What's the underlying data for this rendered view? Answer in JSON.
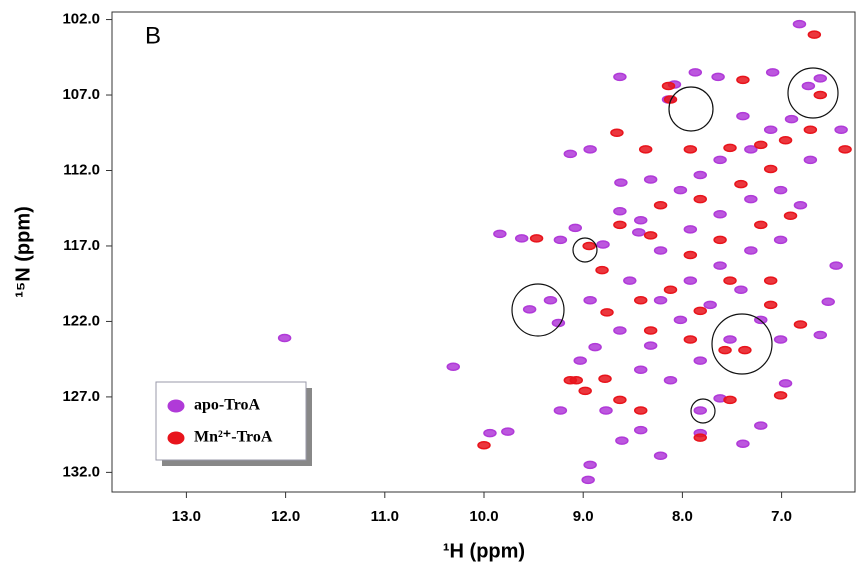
{
  "chart_data": {
    "type": "scatter",
    "panel_label": "B",
    "x_label": "¹H (ppm)",
    "y_label": "¹⁵N (ppm)",
    "xlim": [
      13.75,
      6.25
    ],
    "ylim": [
      101.5,
      133.3
    ],
    "xticks": [
      {
        "value": 13,
        "label": "13.0"
      },
      {
        "value": 12,
        "label": "12.0"
      },
      {
        "value": 11,
        "label": "11.0"
      },
      {
        "value": 10,
        "label": "10.0"
      },
      {
        "value": 9,
        "label": "9.0"
      },
      {
        "value": 8,
        "label": "8.0"
      },
      {
        "value": 7,
        "label": "7.0"
      }
    ],
    "yticks": [
      {
        "value": 102,
        "label": "102.0"
      },
      {
        "value": 107,
        "label": "107.0"
      },
      {
        "value": 112,
        "label": "112.0"
      },
      {
        "value": 117,
        "label": "117.0"
      },
      {
        "value": 122,
        "label": "122.0"
      },
      {
        "value": 127,
        "label": "127.0"
      },
      {
        "value": 132,
        "label": "132.0"
      }
    ],
    "legend": "lower left",
    "series": [
      {
        "name": "apo-TroA",
        "color": "#b03ad8",
        "x": [
          12.01,
          10.31,
          9.84,
          9.62,
          9.94,
          9.76,
          9.54,
          9.25,
          9.23,
          9.08,
          8.93,
          9.13,
          8.93,
          8.8,
          8.63,
          8.62,
          8.08,
          8.14,
          7.87,
          7.64,
          7.39,
          7.09,
          6.82,
          6.73,
          6.61,
          6.4,
          6.45,
          6.53,
          6.61,
          7.01,
          6.96,
          7.62,
          7.82,
          7.82,
          7.21,
          7.39,
          8.22,
          8.61,
          8.93,
          8.95,
          9.23,
          8.77,
          8.42,
          9.33,
          8.88,
          9.03,
          8.63,
          8.44,
          8.32,
          8.02,
          7.82,
          7.62,
          7.31,
          8.42,
          8.22,
          7.92,
          7.62,
          7.31,
          7.01,
          8.53,
          8.22,
          7.92,
          7.62,
          7.31,
          7.01,
          8.63,
          8.32,
          8.02,
          7.72,
          7.41,
          8.42,
          8.12,
          7.82,
          7.52,
          7.21,
          6.81,
          6.71,
          7.11,
          6.9
        ],
        "values": [
          123.1,
          125.0,
          116.2,
          116.5,
          129.4,
          129.3,
          121.2,
          122.1,
          116.6,
          115.8,
          120.6,
          110.9,
          110.6,
          116.9,
          105.8,
          112.8,
          106.3,
          107.3,
          105.5,
          105.8,
          108.4,
          105.5,
          102.3,
          106.4,
          105.9,
          109.3,
          118.3,
          120.7,
          122.9,
          123.2,
          126.1,
          127.1,
          127.9,
          129.4,
          128.9,
          130.1,
          130.9,
          129.9,
          131.5,
          132.5,
          127.9,
          127.9,
          129.2,
          120.6,
          123.7,
          124.6,
          114.7,
          116.1,
          112.6,
          113.3,
          112.3,
          111.3,
          110.6,
          115.3,
          117.3,
          115.9,
          114.9,
          113.9,
          113.3,
          119.3,
          120.6,
          119.3,
          118.3,
          117.3,
          116.6,
          122.6,
          123.6,
          121.9,
          120.9,
          119.9,
          125.2,
          125.9,
          124.6,
          123.2,
          121.9,
          114.3,
          111.3,
          109.3,
          108.6
        ]
      },
      {
        "name": "Mn²⁺-TroA",
        "color": "#e8141c",
        "x": [
          10.0,
          9.47,
          8.94,
          9.07,
          8.78,
          8.81,
          8.76,
          8.66,
          8.37,
          8.14,
          8.12,
          7.39,
          6.67,
          6.61,
          6.96,
          6.71,
          6.36,
          7.21,
          7.52,
          7.92,
          7.82,
          7.41,
          7.11,
          8.22,
          8.63,
          8.32,
          7.92,
          7.62,
          7.21,
          6.91,
          8.42,
          8.12,
          7.82,
          7.52,
          7.11,
          8.32,
          7.92,
          7.57,
          7.37,
          7.11,
          6.81,
          7.52,
          7.01,
          8.42,
          7.82,
          9.13,
          8.98,
          8.63
        ],
        "values": [
          130.2,
          116.5,
          117.0,
          125.9,
          125.8,
          118.6,
          121.4,
          109.5,
          110.6,
          106.4,
          107.3,
          106.0,
          103.0,
          107.0,
          110.0,
          109.3,
          110.6,
          110.3,
          110.5,
          110.6,
          113.9,
          112.9,
          111.9,
          114.3,
          115.6,
          116.3,
          117.6,
          116.6,
          115.6,
          115.0,
          120.6,
          119.9,
          121.3,
          119.3,
          119.3,
          122.6,
          123.2,
          123.9,
          123.9,
          120.9,
          122.2,
          127.2,
          126.9,
          127.9,
          129.7,
          125.9,
          126.6,
          127.2
        ]
      }
    ]
  }
}
